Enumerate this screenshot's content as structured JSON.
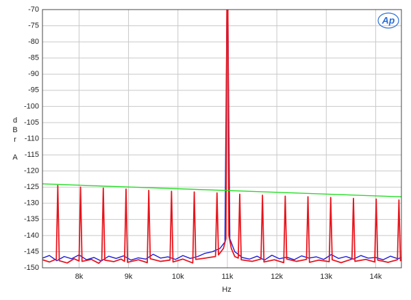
{
  "chart_data": {
    "type": "line",
    "x_label": "Hz",
    "y_label_letters": [
      "d",
      "B",
      "r",
      "A"
    ],
    "logo": "Ap",
    "xlim": [
      7260,
      14520
    ],
    "ylim": [
      -150,
      -70
    ],
    "xticks": [
      {
        "value": 8000,
        "label": "8k"
      },
      {
        "value": 9000,
        "label": "9k"
      },
      {
        "value": 10000,
        "label": "10k"
      },
      {
        "value": 11000,
        "label": "11k"
      },
      {
        "value": 12000,
        "label": "12k"
      },
      {
        "value": 13000,
        "label": "13k"
      },
      {
        "value": 14000,
        "label": "14k"
      }
    ],
    "yticks": [
      -70,
      -75,
      -80,
      -85,
      -90,
      -95,
      -100,
      -105,
      -110,
      -115,
      -120,
      -125,
      -130,
      -135,
      -140,
      -145,
      -150
    ],
    "grid": true,
    "series": [
      {
        "color": "#1a1ad6",
        "x": [
          7260,
          7400,
          7550,
          7700,
          7850,
          8000,
          8150,
          8300,
          8450,
          8600,
          8750,
          8900,
          9050,
          9200,
          9350,
          9500,
          9650,
          9800,
          9950,
          10100,
          10250,
          10400,
          10550,
          10700,
          10850,
          10950,
          10990,
          11010,
          11050,
          11150,
          11300,
          11450,
          11600,
          11750,
          11900,
          12050,
          12200,
          12350,
          12500,
          12650,
          12800,
          12950,
          13100,
          13250,
          13400,
          13550,
          13700,
          13850,
          14000,
          14150,
          14300,
          14450,
          14520
        ],
        "values": [
          -147,
          -146.2,
          -147.8,
          -146.5,
          -147.2,
          -146,
          -147.5,
          -146.8,
          -147.9,
          -146.4,
          -147.1,
          -146.3,
          -147.6,
          -146.9,
          -147.3,
          -145.8,
          -147,
          -146.6,
          -147.4,
          -146.2,
          -147.1,
          -146.5,
          -145.5,
          -145,
          -144,
          -142,
          -70,
          -70,
          -141,
          -145,
          -146.8,
          -147.3,
          -146.4,
          -147.6,
          -146.1,
          -147.2,
          -146.7,
          -147.5,
          -146.3,
          -147,
          -146.6,
          -147.4,
          -145.9,
          -147.1,
          -146.5,
          -147.3,
          -146.2,
          -147,
          -146.8,
          -147.5,
          -146.4,
          -147.2,
          -146.8
        ]
      },
      {
        "color": "#e8141c",
        "x": [
          7260,
          7400,
          7540,
          7570,
          7600,
          7760,
          7900,
          8000,
          8030,
          8060,
          8250,
          8400,
          8460,
          8490,
          8520,
          8700,
          8850,
          8920,
          8950,
          8980,
          9200,
          9380,
          9410,
          9440,
          9650,
          9840,
          9870,
          9900,
          10100,
          10300,
          10330,
          10360,
          10550,
          10760,
          10790,
          10820,
          10920,
          10970,
          10990,
          11010,
          11030,
          11080,
          11150,
          11220,
          11250,
          11280,
          11500,
          11680,
          11710,
          11740,
          11950,
          12140,
          12170,
          12200,
          12400,
          12600,
          12630,
          12660,
          12850,
          13060,
          13090,
          13120,
          13300,
          13520,
          13550,
          13580,
          13800,
          13980,
          14010,
          14040,
          14250,
          14440,
          14470,
          14500,
          14520
        ],
        "values": [
          -147.5,
          -148.2,
          -147.3,
          -124.5,
          -147.8,
          -148.5,
          -147.2,
          -147.9,
          -125,
          -148,
          -147.4,
          -148.6,
          -147.6,
          -125.3,
          -147.6,
          -148.1,
          -147.3,
          -148,
          -125.6,
          -148.3,
          -147.5,
          -148.4,
          -126,
          -147.2,
          -148,
          -147.6,
          -126.3,
          -148.2,
          -147.3,
          -148.5,
          -126.5,
          -147.4,
          -147,
          -146.5,
          -126.8,
          -146,
          -144,
          -141,
          -70,
          -70,
          -140,
          -144,
          -146.5,
          -147,
          -127.2,
          -147.5,
          -148,
          -147.3,
          -127.5,
          -148.2,
          -147.5,
          -148.4,
          -127.8,
          -147.3,
          -148,
          -147.4,
          -128,
          -148.3,
          -147.6,
          -148.1,
          -128.2,
          -147.5,
          -148.4,
          -147.3,
          -128.5,
          -148,
          -147.4,
          -148.2,
          -128.7,
          -147.6,
          -148.3,
          -147.5,
          -129,
          -147.8,
          -147.6
        ]
      },
      {
        "color": "#22dd22",
        "x": [
          7260,
          14520
        ],
        "values": [
          -124,
          -128
        ]
      }
    ]
  }
}
